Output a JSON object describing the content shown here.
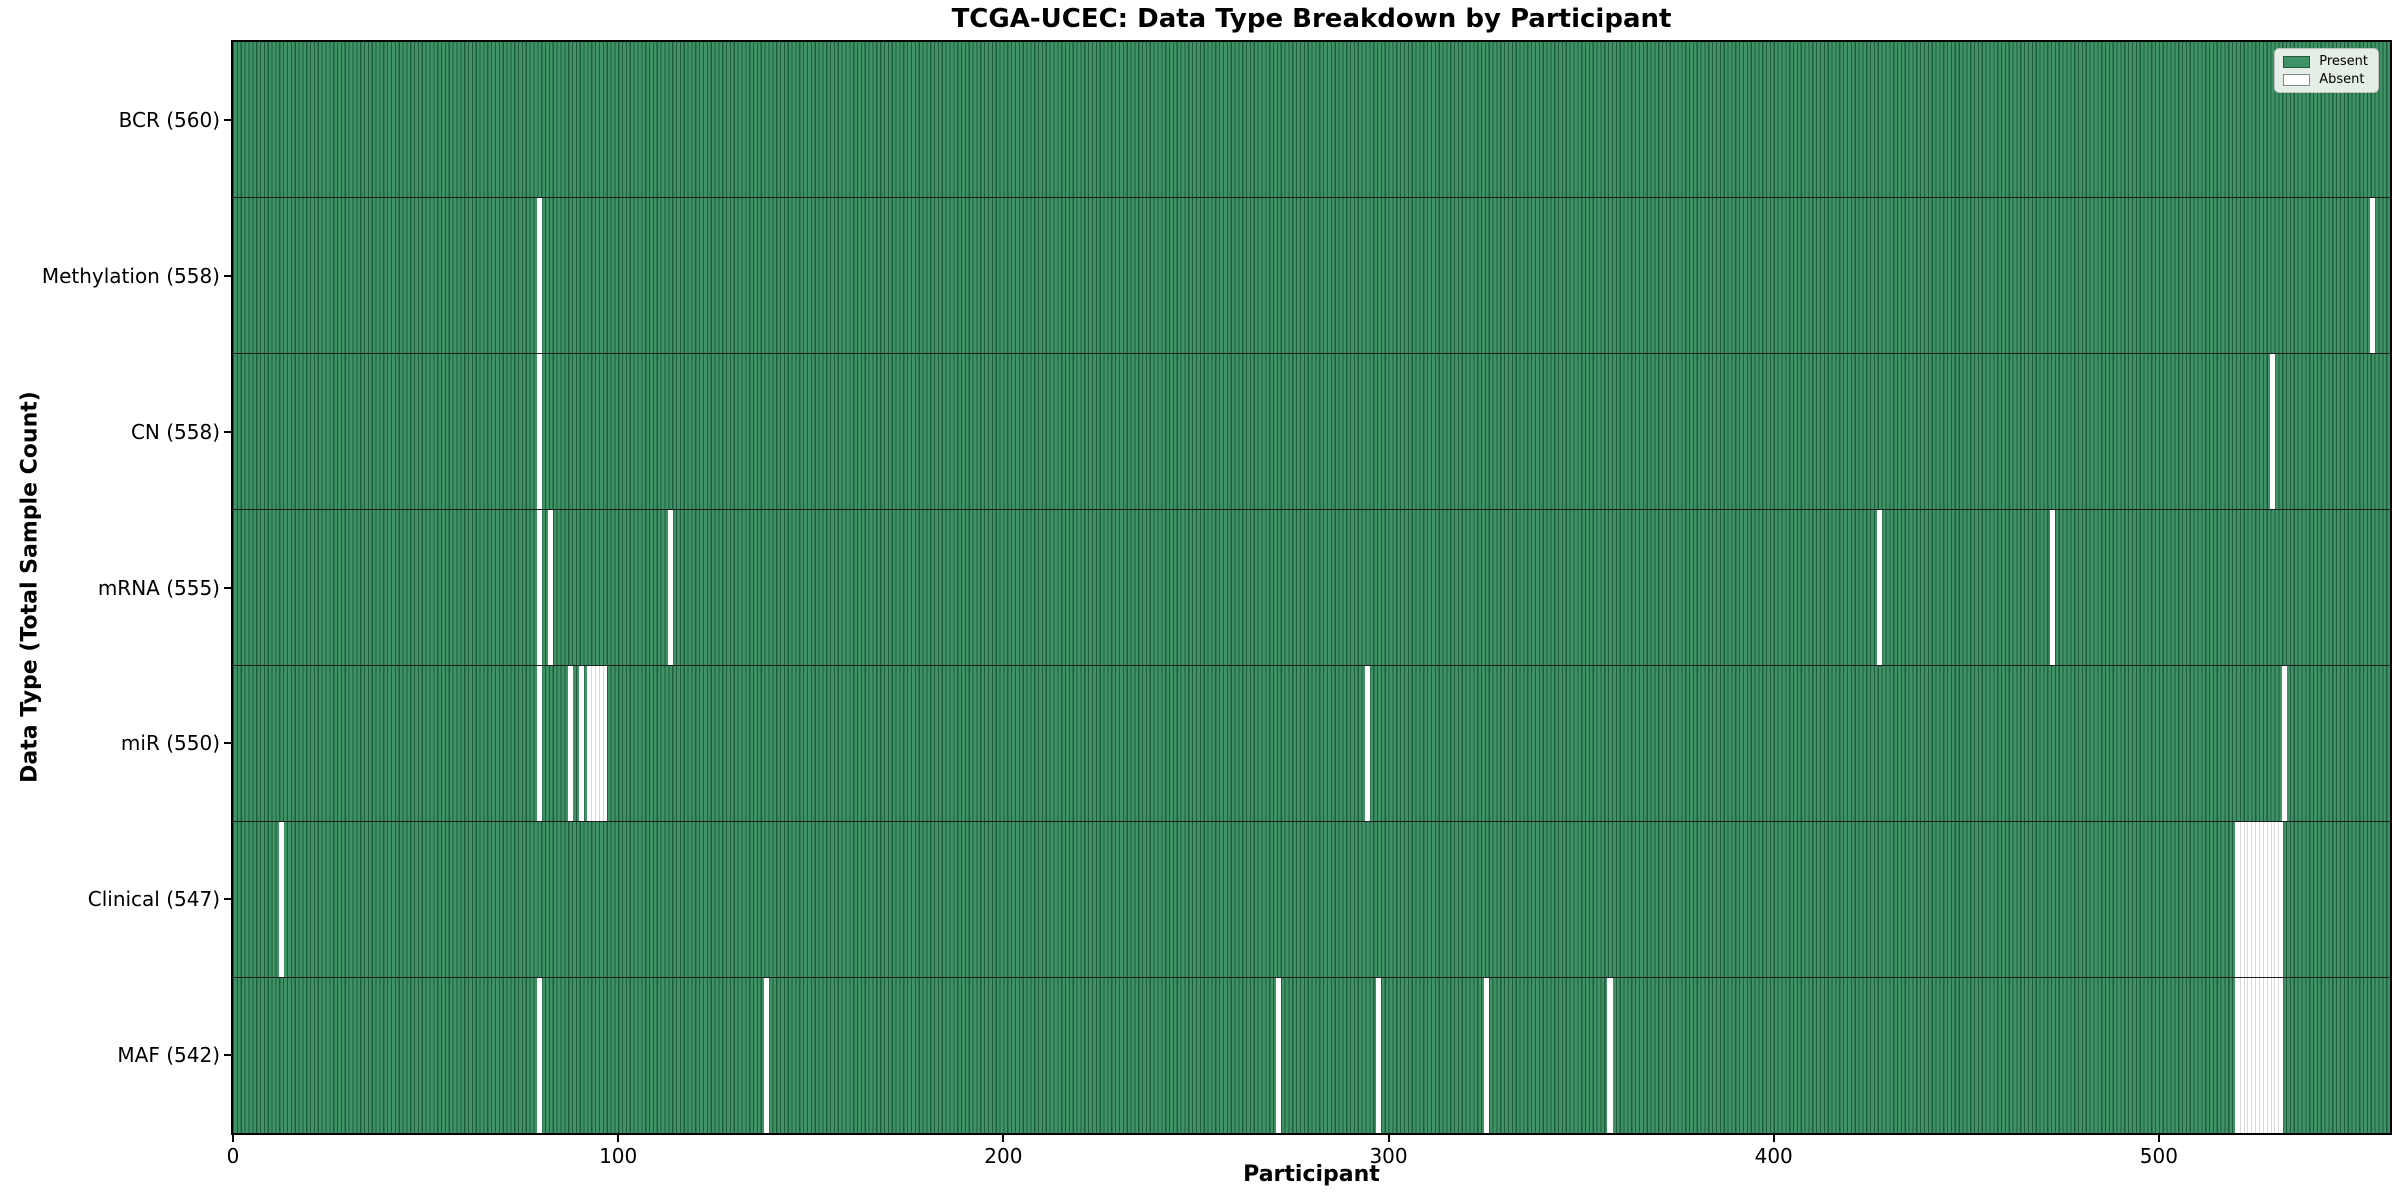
{
  "colors": {
    "present": "#3E9265",
    "present_edge": "#1F5C3B",
    "absent": "#FFFFFF",
    "absent_edge": "#D9D9D9",
    "row_divider": "#1C1C1C",
    "spine": "#000000",
    "background": "#FFFFFF",
    "legend_bg": "rgba(242,247,242,0.92)",
    "legend_border": "#BFBFBF",
    "text": "#000000"
  },
  "chart_data": {
    "type": "heatmap",
    "title": "TCGA-UCEC: Data Type Breakdown by Participant",
    "xlabel": "Participant",
    "ylabel": "Data Type (Total Sample Count)",
    "x_range": [
      0,
      560
    ],
    "x_ticks": [
      0,
      100,
      200,
      300,
      400,
      500
    ],
    "x_tick_labels": [
      "0",
      "100",
      "200",
      "300",
      "400",
      "500"
    ],
    "grid": false,
    "legend_position": "upper right",
    "legend_entries": [
      {
        "label": "Present",
        "color_key": "present"
      },
      {
        "label": "Absent",
        "color_key": "absent"
      }
    ],
    "rows": [
      {
        "data_type": "BCR",
        "label": "BCR (560)",
        "total": 560,
        "absent_participants": []
      },
      {
        "data_type": "Methylation",
        "label": "Methylation (558)",
        "total": 558,
        "absent_participants": [
          79,
          555
        ]
      },
      {
        "data_type": "CN",
        "label": "CN (558)",
        "total": 558,
        "absent_participants": [
          79,
          529
        ]
      },
      {
        "data_type": "mRNA",
        "label": "mRNA (555)",
        "total": 555,
        "absent_participants": [
          79,
          82,
          113,
          427,
          472
        ]
      },
      {
        "data_type": "miR",
        "label": "miR (550)",
        "total": 550,
        "absent_participants": [
          79,
          87,
          90,
          92,
          93,
          94,
          95,
          96,
          294,
          532
        ]
      },
      {
        "data_type": "Clinical",
        "label": "Clinical (547)",
        "total": 547,
        "absent_participants": [
          12,
          520,
          521,
          522,
          523,
          524,
          525,
          526,
          527,
          528,
          529,
          530,
          531
        ]
      },
      {
        "data_type": "MAF",
        "label": "MAF (542)",
        "total": 542,
        "absent_participants": [
          79,
          138,
          271,
          297,
          325,
          357,
          520,
          521,
          522,
          523,
          524,
          525,
          526,
          527,
          528,
          529,
          530,
          531
        ]
      }
    ]
  }
}
